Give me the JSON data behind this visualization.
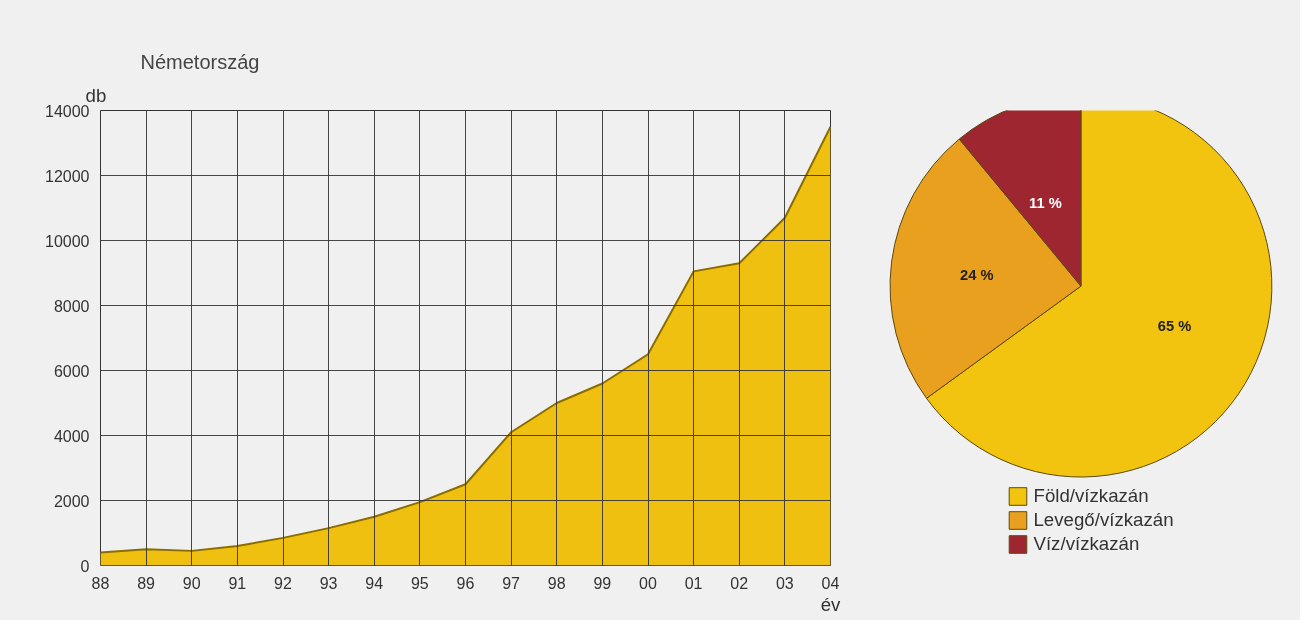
{
  "chart_data": [
    {
      "type": "area",
      "title": "Németország",
      "ylabel": "db",
      "xlabel": "év",
      "categories": [
        "88",
        "89",
        "90",
        "91",
        "92",
        "93",
        "94",
        "95",
        "96",
        "97",
        "98",
        "99",
        "00",
        "01",
        "02",
        "03",
        "04"
      ],
      "series": [
        {
          "color": "#f0c010",
          "values": [
            400,
            500,
            450,
            600,
            850,
            1150,
            1500,
            1950,
            2500,
            4100,
            5000,
            5600,
            6500,
            9050,
            9300,
            10700,
            13500
          ]
        }
      ],
      "ylim": [
        0,
        14000
      ],
      "yticks": [
        0,
        2000,
        4000,
        6000,
        8000,
        10000,
        12000,
        14000
      ],
      "grid": true
    },
    {
      "type": "pie",
      "categories": [
        "Föld/vízkazán",
        "Levegő/vízkazán",
        "Víz/vízkazán"
      ],
      "values": [
        65,
        24,
        11
      ],
      "colors": [
        "#f2c40f",
        "#e8a01e",
        "#9e2630"
      ],
      "value_labels": [
        "65 %",
        "24 %",
        "11 %"
      ],
      "legend": "bottom"
    }
  ]
}
